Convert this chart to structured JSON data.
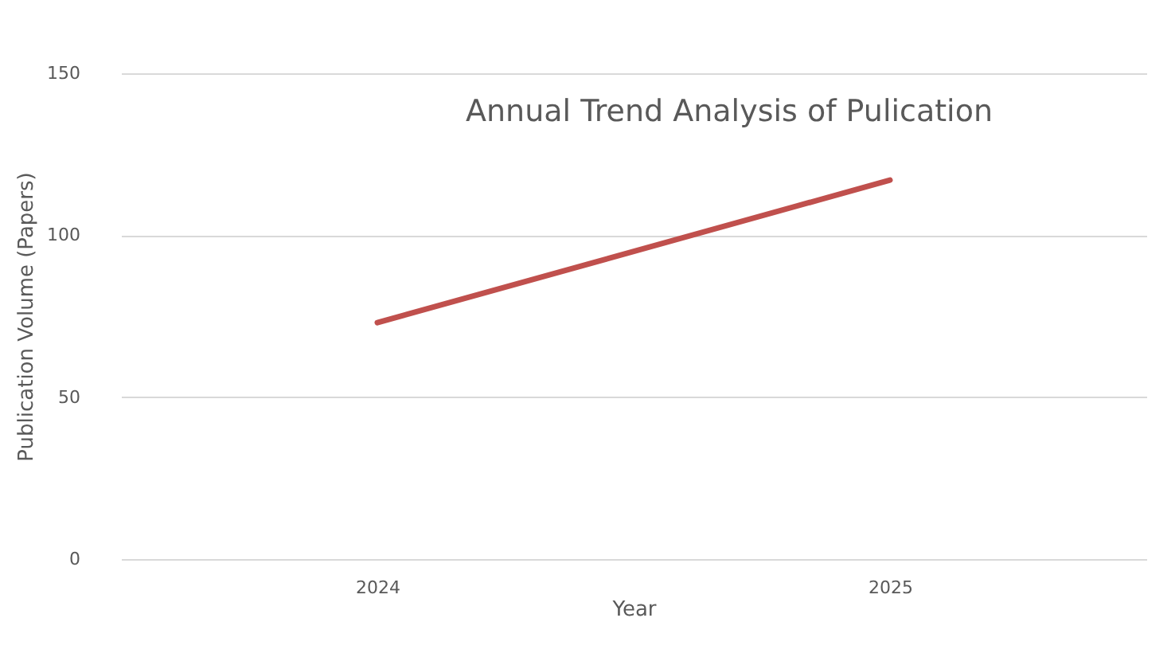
{
  "chart_data": {
    "type": "line",
    "title": "Annual Trend Analysis of Pulication",
    "xlabel": "Year",
    "ylabel": "Publication Volume (Papers)",
    "categories": [
      "2024",
      "2025"
    ],
    "series": [
      {
        "color": "#c0504d",
        "values": [
          73,
          117
        ]
      }
    ],
    "ylim": [
      0,
      150
    ],
    "yticks": [
      0,
      50,
      100,
      150
    ],
    "grid": "y",
    "marker": "none",
    "line_style": "solid"
  }
}
